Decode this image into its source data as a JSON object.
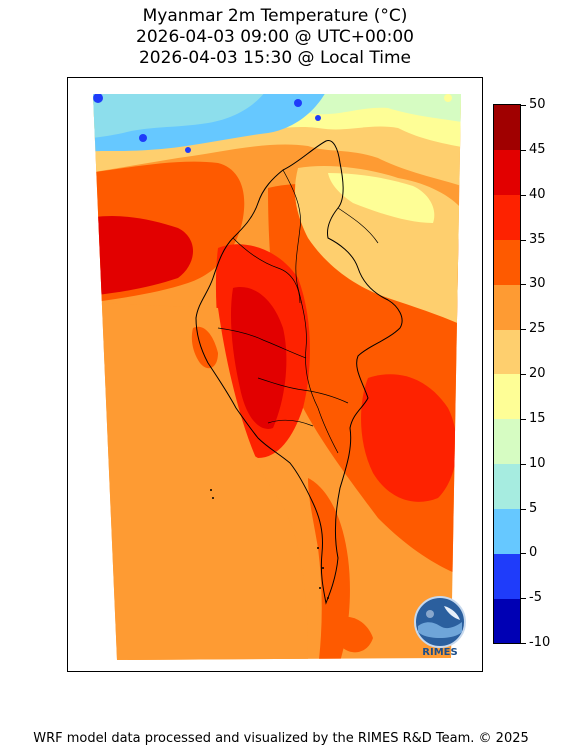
{
  "title": {
    "line1": "Myanmar 2m Temperature (°C)",
    "line2": "2026-04-03 09:00 @ UTC+00:00",
    "line3": "2026-04-03 15:30 @ Local Time"
  },
  "colorbar": {
    "levels": [
      -10,
      -5,
      0,
      5,
      10,
      15,
      20,
      25,
      30,
      35,
      40,
      45,
      50
    ],
    "labels": [
      "-10",
      "-5",
      "0",
      "5",
      "10",
      "15",
      "20",
      "25",
      "30",
      "35",
      "40",
      "45",
      "50"
    ],
    "colors": [
      "#0000b4",
      "#1f3cfa",
      "#66c8ff",
      "#a6ece0",
      "#d6fcc2",
      "#fefe96",
      "#fecf6e",
      "#fe9b33",
      "#fe5a00",
      "#fe2200",
      "#e20000",
      "#a00000"
    ]
  },
  "logo": {
    "text": "RIMES",
    "icon": "rimes-globe-logo-icon"
  },
  "footer": {
    "credit": "WRF model data processed and visualized by the RIMES R&D Team. © 2025"
  }
}
